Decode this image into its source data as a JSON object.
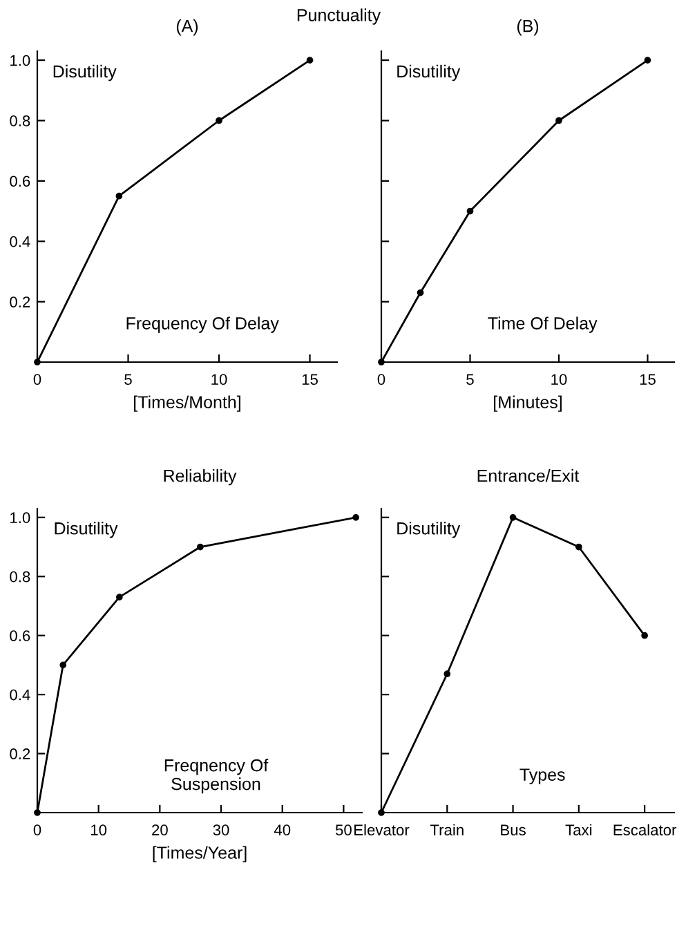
{
  "chart_data": [
    {
      "type": "line",
      "title": "Punctuality",
      "subtitle": "(A)",
      "ylabel": "Disutility",
      "xlabel": "[Times/Month]",
      "annotations": [
        "Frequency Of Delay"
      ],
      "x": [
        0,
        4.5,
        10,
        15
      ],
      "values": [
        0,
        0.55,
        0.8,
        1.0
      ],
      "color": "#000000",
      "marker": "circle",
      "xlim": [
        0,
        16.5
      ],
      "ylim": [
        0,
        1.03
      ],
      "xticks": [
        0,
        5,
        10,
        15
      ],
      "yticks": [
        0.2,
        0.4,
        0.6,
        0.8,
        {
          "value": 1,
          "label": "1.0"
        }
      ],
      "grid": false,
      "legend": false
    },
    {
      "type": "line",
      "subtitle": "(B)",
      "ylabel": "Disutility",
      "xlabel": "[Minutes]",
      "annotations": [
        "Time Of Delay"
      ],
      "x": [
        0,
        2.2,
        5,
        10,
        15
      ],
      "values": [
        0,
        0.23,
        0.5,
        0.8,
        1.0
      ],
      "color": "#000000",
      "marker": "circle",
      "xlim": [
        0,
        16.5
      ],
      "ylim": [
        0,
        1.03
      ],
      "xticks": [
        0,
        5,
        10,
        15
      ],
      "yticks": [
        0.2,
        0.4,
        0.6,
        0.8,
        1.0
      ],
      "tick_labels": "x",
      "grid": false,
      "legend": false
    },
    {
      "type": "line",
      "title": "Reliability",
      "ylabel": "Disutility",
      "xlabel": "[Times/Year]",
      "annotations": [
        "Freqnency Of\nSuspension"
      ],
      "x": [
        0,
        4.2,
        13.4,
        26.6,
        52
      ],
      "values": [
        0,
        0.5,
        0.73,
        0.9,
        1.0
      ],
      "color": "#000000",
      "marker": "circle",
      "xlim": [
        0,
        53
      ],
      "ylim": [
        0,
        1.03
      ],
      "xticks": [
        0,
        10,
        20,
        30,
        40,
        50
      ],
      "yticks": [
        0.2,
        0.4,
        0.6,
        0.8,
        {
          "value": 1,
          "label": "1.0"
        }
      ],
      "grid": false,
      "legend": false
    },
    {
      "type": "line",
      "title": "Entrance/Exit",
      "ylabel": "Disutility",
      "annotations": [
        "Types"
      ],
      "categories": [
        "Elevator",
        "Train",
        "Bus",
        "Taxi",
        "Escalator"
      ],
      "values": [
        0,
        0.47,
        1.0,
        0.9,
        0.6
      ],
      "color": "#000000",
      "marker": "circle",
      "ylim": [
        0,
        1.03
      ],
      "yticks": [
        0.2,
        0.4,
        0.6,
        0.8,
        1.0
      ],
      "tick_labels": "x",
      "grid": false,
      "legend": false
    }
  ]
}
